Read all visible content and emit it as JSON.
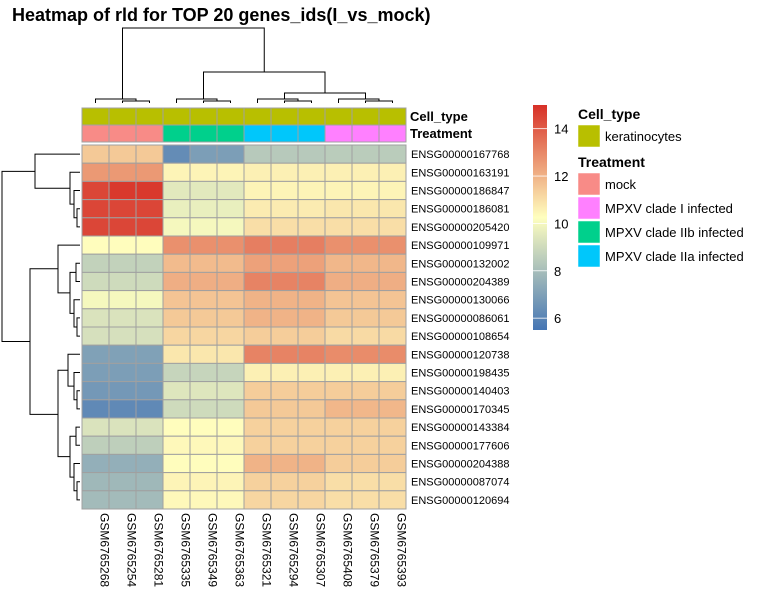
{
  "title": "Heatmap of rld for TOP 20 genes_ids(I_vs_mock)",
  "chart_data": {
    "type": "heatmap",
    "columns": [
      "GSM6765268",
      "GSM6765254",
      "GSM6765281",
      "GSM6765335",
      "GSM6765349",
      "GSM6765363",
      "GSM6765321",
      "GSM6765294",
      "GSM6765307",
      "GSM6765408",
      "GSM6765379",
      "GSM6765393"
    ],
    "rows": [
      "ENSG00000167768",
      "ENSG00000163191",
      "ENSG00000186847",
      "ENSG00000186081",
      "ENSG00000205420",
      "ENSG00000109971",
      "ENSG00000132002",
      "ENSG00000204389",
      "ENSG00000130066",
      "ENSG00000086061",
      "ENSG00000108654",
      "ENSG00000120738",
      "ENSG00000198435",
      "ENSG00000140403",
      "ENSG00000170345",
      "ENSG00000143384",
      "ENSG00000177606",
      "ENSG00000204388",
      "ENSG00000087074",
      "ENSG00000120694"
    ],
    "values": [
      [
        11.5,
        11.5,
        11.5,
        6.3,
        6.9,
        6.9,
        8.4,
        8.4,
        8.4,
        8.5,
        8.5,
        8.5
      ],
      [
        12.6,
        12.6,
        12.6,
        10.5,
        10.5,
        10.5,
        10.6,
        10.6,
        10.6,
        10.6,
        10.6,
        10.6
      ],
      [
        14.5,
        14.8,
        14.8,
        9.5,
        9.5,
        9.5,
        10.5,
        10.5,
        10.5,
        10.5,
        10.5,
        10.5
      ],
      [
        14.5,
        14.5,
        14.5,
        9.7,
        9.7,
        9.7,
        10.7,
        10.7,
        10.7,
        10.8,
        10.8,
        10.8
      ],
      [
        14.5,
        14.5,
        14.5,
        10.0,
        10.0,
        10.0,
        11.0,
        11.0,
        11.0,
        11.0,
        11.0,
        11.0
      ],
      [
        10.3,
        10.3,
        10.3,
        12.8,
        12.8,
        12.8,
        13.2,
        13.2,
        13.2,
        12.8,
        12.8,
        12.8
      ],
      [
        8.7,
        8.7,
        8.7,
        11.8,
        11.8,
        11.8,
        12.4,
        12.4,
        12.4,
        11.9,
        11.9,
        11.9
      ],
      [
        9.0,
        9.0,
        9.0,
        12.1,
        12.1,
        12.1,
        13.1,
        13.1,
        13.1,
        12.1,
        12.1,
        12.1
      ],
      [
        10.0,
        10.0,
        10.0,
        11.6,
        11.6,
        11.6,
        12.0,
        12.0,
        12.0,
        11.6,
        11.6,
        11.6
      ],
      [
        9.3,
        9.3,
        9.3,
        11.5,
        11.5,
        11.5,
        12.0,
        12.0,
        12.0,
        11.5,
        11.5,
        11.5
      ],
      [
        9.2,
        9.2,
        9.2,
        11.2,
        11.2,
        11.2,
        11.4,
        11.4,
        11.4,
        11.1,
        11.1,
        11.1
      ],
      [
        7.0,
        7.0,
        7.0,
        10.8,
        10.8,
        10.8,
        13.1,
        13.1,
        13.1,
        12.9,
        12.9,
        12.9
      ],
      [
        6.9,
        6.9,
        6.9,
        8.8,
        8.8,
        8.8,
        10.6,
        10.6,
        10.6,
        10.6,
        10.6,
        10.6
      ],
      [
        6.7,
        6.7,
        6.7,
        9.4,
        9.4,
        9.4,
        11.4,
        11.4,
        11.4,
        11.4,
        11.4,
        11.4
      ],
      [
        6.2,
        6.2,
        6.2,
        9.0,
        9.0,
        9.0,
        11.5,
        11.5,
        11.5,
        11.9,
        11.9,
        11.9
      ],
      [
        9.3,
        9.3,
        9.3,
        10.3,
        10.3,
        10.3,
        11.3,
        11.3,
        11.3,
        11.3,
        11.3,
        11.3
      ],
      [
        8.6,
        8.6,
        8.6,
        10.4,
        10.4,
        10.4,
        11.3,
        11.3,
        11.3,
        11.3,
        11.3,
        11.3
      ],
      [
        7.5,
        7.5,
        7.5,
        10.3,
        10.3,
        10.3,
        12.0,
        12.0,
        12.0,
        11.4,
        11.4,
        11.4
      ],
      [
        7.8,
        7.8,
        7.8,
        10.5,
        10.5,
        10.5,
        11.3,
        11.3,
        11.3,
        11.0,
        11.0,
        11.0
      ],
      [
        7.9,
        7.9,
        7.9,
        10.4,
        10.4,
        10.4,
        11.2,
        11.2,
        11.2,
        11.0,
        11.0,
        11.0
      ]
    ],
    "value_range": [
      5.5,
      15.0
    ],
    "colorbar_ticks": [
      6,
      8,
      10,
      12,
      14
    ],
    "palette": [
      "#4575b4",
      "#ffffbf",
      "#d73027"
    ],
    "annotation_rows": [
      {
        "name": "Cell_type",
        "values": [
          "keratinocytes",
          "keratinocytes",
          "keratinocytes",
          "keratinocytes",
          "keratinocytes",
          "keratinocytes",
          "keratinocytes",
          "keratinocytes",
          "keratinocytes",
          "keratinocytes",
          "keratinocytes",
          "keratinocytes"
        ]
      },
      {
        "name": "Treatment",
        "values": [
          "mock",
          "mock",
          "mock",
          "MPXV clade IIb infected",
          "MPXV clade IIb infected",
          "MPXV clade IIb infected",
          "MPXV clade IIa infected",
          "MPXV clade IIa infected",
          "MPXV clade IIa infected",
          "MPXV clade I infected",
          "MPXV clade I infected",
          "MPXV clade I infected"
        ]
      }
    ],
    "legend": {
      "Cell_type": [
        {
          "label": "keratinocytes",
          "color": "#b8bf00"
        }
      ],
      "Treatment": [
        {
          "label": "mock",
          "color": "#f88b87"
        },
        {
          "label": "MPXV clade I infected",
          "color": "#ff80ff"
        },
        {
          "label": "MPXV clade IIb infected",
          "color": "#00d08c"
        },
        {
          "label": "MPXV clade IIa infected",
          "color": "#00c7fb"
        }
      ]
    },
    "dendrograms": "column and row hierarchical clustering",
    "grid": true
  }
}
